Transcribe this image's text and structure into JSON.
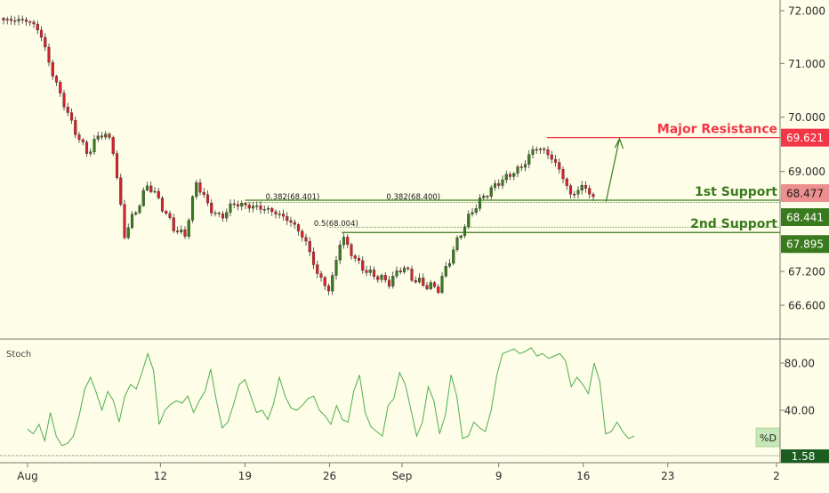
{
  "chart_data": [
    {
      "type": "candlestick",
      "title": "",
      "ylim": [
        66.15,
        72.15
      ],
      "y_scale": "log",
      "y_ticks": [
        "72.000",
        "71.000",
        "70.000",
        "69.000",
        "67.200",
        "66.600"
      ],
      "x_ticks": [
        "Aug",
        "12",
        "19",
        "26",
        "Sep",
        "9",
        "16",
        "23",
        "2"
      ],
      "grid": false,
      "up_color": "#3a7a1e",
      "down_color": "#d4212b",
      "close_path": [
        [
          "2019-08-01",
          71.82
        ],
        [
          "2019-08-02",
          71.62
        ],
        [
          "2019-08-03",
          70.85
        ],
        [
          "2019-08-04",
          70.25
        ],
        [
          "2019-08-05",
          69.7
        ],
        [
          "2019-08-06",
          69.32
        ],
        [
          "2019-08-07",
          69.72
        ],
        [
          "2019-08-08",
          69.55
        ],
        [
          "2019-08-09",
          67.85
        ],
        [
          "2019-08-10",
          68.3
        ],
        [
          "2019-08-11",
          68.78
        ],
        [
          "2019-08-12",
          68.42
        ],
        [
          "2019-08-13",
          68.0
        ],
        [
          "2019-08-14",
          67.82
        ],
        [
          "2019-08-15",
          68.82
        ],
        [
          "2019-08-16",
          68.35
        ],
        [
          "2019-08-17",
          68.15
        ],
        [
          "2019-08-18",
          68.42
        ],
        [
          "2019-08-19",
          68.38
        ],
        [
          "2019-08-20",
          68.35
        ],
        [
          "2019-08-21",
          68.3
        ],
        [
          "2019-08-22",
          68.2
        ],
        [
          "2019-08-23",
          68.05
        ],
        [
          "2019-08-24",
          67.75
        ],
        [
          "2019-08-25",
          67.15
        ],
        [
          "2019-08-26",
          66.85
        ],
        [
          "2019-08-27",
          67.85
        ],
        [
          "2019-08-28",
          67.45
        ],
        [
          "2019-08-29",
          67.2
        ],
        [
          "2019-08-30",
          67.1
        ],
        [
          "2019-08-31",
          67.0
        ],
        [
          "2019-09-01",
          67.3
        ],
        [
          "2019-09-02",
          67.05
        ],
        [
          "2019-09-03",
          66.95
        ],
        [
          "2019-09-04",
          66.9
        ],
        [
          "2019-09-05",
          67.45
        ],
        [
          "2019-09-06",
          67.95
        ],
        [
          "2019-09-07",
          68.35
        ],
        [
          "2019-09-08",
          68.6
        ],
        [
          "2019-09-09",
          68.8
        ],
        [
          "2019-09-10",
          68.95
        ],
        [
          "2019-09-11",
          69.1
        ],
        [
          "2019-09-12",
          69.45
        ],
        [
          "2019-09-13",
          69.35
        ],
        [
          "2019-09-14",
          69.05
        ],
        [
          "2019-09-15",
          68.55
        ],
        [
          "2019-09-16",
          68.75
        ],
        [
          "2019-09-17",
          68.48
        ]
      ],
      "levels": [
        {
          "label": "Major Resistance",
          "value": "69.621",
          "color": "#f23645"
        },
        {
          "label": "1st Support",
          "value": "68.477",
          "color": "#ee8f8f"
        },
        {
          "label": "",
          "value": "68.441",
          "color": "#3a7a1e"
        },
        {
          "label": "2nd Support",
          "value": "67.895",
          "color": "#3a7a1e"
        }
      ],
      "fib_labels": [
        {
          "text": "0.382(68.401)",
          "date": "2019-08-21"
        },
        {
          "text": "0.382(68.400)",
          "date": "2019-08-31"
        },
        {
          "text": "0.5(68.004)",
          "date": "2019-08-25"
        }
      ],
      "arrow": {
        "from": [
          "2019-09-17",
          68.45
        ],
        "to": [
          "2019-09-19",
          69.6
        ]
      }
    },
    {
      "type": "line",
      "title": "Stoch",
      "series": [
        {
          "name": "%D",
          "color": "#4caf50"
        }
      ],
      "ylim": [
        -5,
        103
      ],
      "y_ticks": [
        "80.00",
        "40.00"
      ],
      "last_value": "1.58",
      "grid": false,
      "values_x_start": "2019-08-01",
      "values": [
        24,
        20,
        28,
        14,
        38,
        18,
        10,
        12,
        18,
        35,
        58,
        68,
        55,
        40,
        56,
        48,
        30,
        52,
        62,
        58,
        72,
        88,
        74,
        28,
        40,
        45,
        48,
        46,
        52,
        38,
        48,
        56,
        75,
        48,
        25,
        30,
        45,
        62,
        66,
        52,
        38,
        40,
        32,
        46,
        68,
        52,
        42,
        40,
        44,
        50,
        52,
        40,
        35,
        28,
        44,
        32,
        30,
        56,
        70,
        38,
        26,
        22,
        18,
        44,
        50,
        72,
        62,
        40,
        18,
        30,
        60,
        48,
        20,
        36,
        70,
        52,
        16,
        18,
        30,
        25,
        22,
        40,
        70,
        88,
        90,
        92,
        88,
        90,
        93,
        86,
        88,
        84,
        86,
        88,
        82,
        60,
        68,
        62,
        54,
        80,
        64,
        20,
        22,
        30,
        22,
        16,
        18
      ]
    }
  ]
}
